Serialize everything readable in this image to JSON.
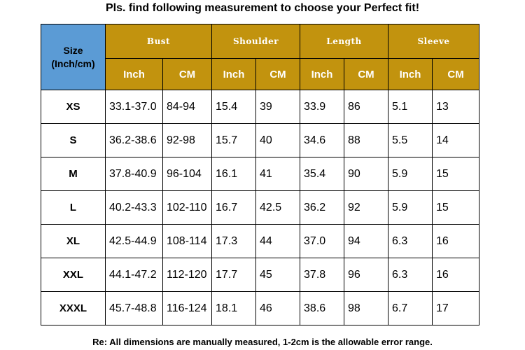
{
  "title": "Pls. find following measurement to choose your Perfect fit!",
  "note": "Re: All dimensions are manually measured, 1-2cm is the allowable error range.",
  "colors": {
    "header_gold": "#c2930e",
    "corner_blue": "#5b9bd5"
  },
  "table": {
    "corner_label": "Size",
    "corner_unit": "(Inch/cm)",
    "groups": [
      "Bust",
      "Shoulder",
      "Length",
      "Sleeve"
    ],
    "units": [
      "Inch",
      "CM",
      "Inch",
      "CM",
      "Inch",
      "CM",
      "Inch",
      "CM"
    ],
    "rows": [
      {
        "size": "XS",
        "cells": [
          "33.1-37.0",
          "84-94",
          "15.4",
          "39",
          "33.9",
          "86",
          "5.1",
          "13"
        ]
      },
      {
        "size": "S",
        "cells": [
          "36.2-38.6",
          "92-98",
          "15.7",
          "40",
          "34.6",
          "88",
          "5.5",
          "14"
        ]
      },
      {
        "size": "M",
        "cells": [
          "37.8-40.9",
          "96-104",
          "16.1",
          "41",
          "35.4",
          "90",
          "5.9",
          "15"
        ]
      },
      {
        "size": "L",
        "cells": [
          "40.2-43.3",
          "102-110",
          "16.7",
          "42.5",
          "36.2",
          "92",
          "5.9",
          "15"
        ]
      },
      {
        "size": "XL",
        "cells": [
          "42.5-44.9",
          "108-114",
          "17.3",
          "44",
          "37.0",
          "94",
          "6.3",
          "16"
        ]
      },
      {
        "size": "XXL",
        "cells": [
          "44.1-47.2",
          "112-120",
          "17.7",
          "45",
          "37.8",
          "96",
          "6.3",
          "16"
        ]
      },
      {
        "size": "XXXL",
        "cells": [
          "45.7-48.8",
          "116-124",
          "18.1",
          "46",
          "38.6",
          "98",
          "6.7",
          "17"
        ]
      }
    ]
  }
}
